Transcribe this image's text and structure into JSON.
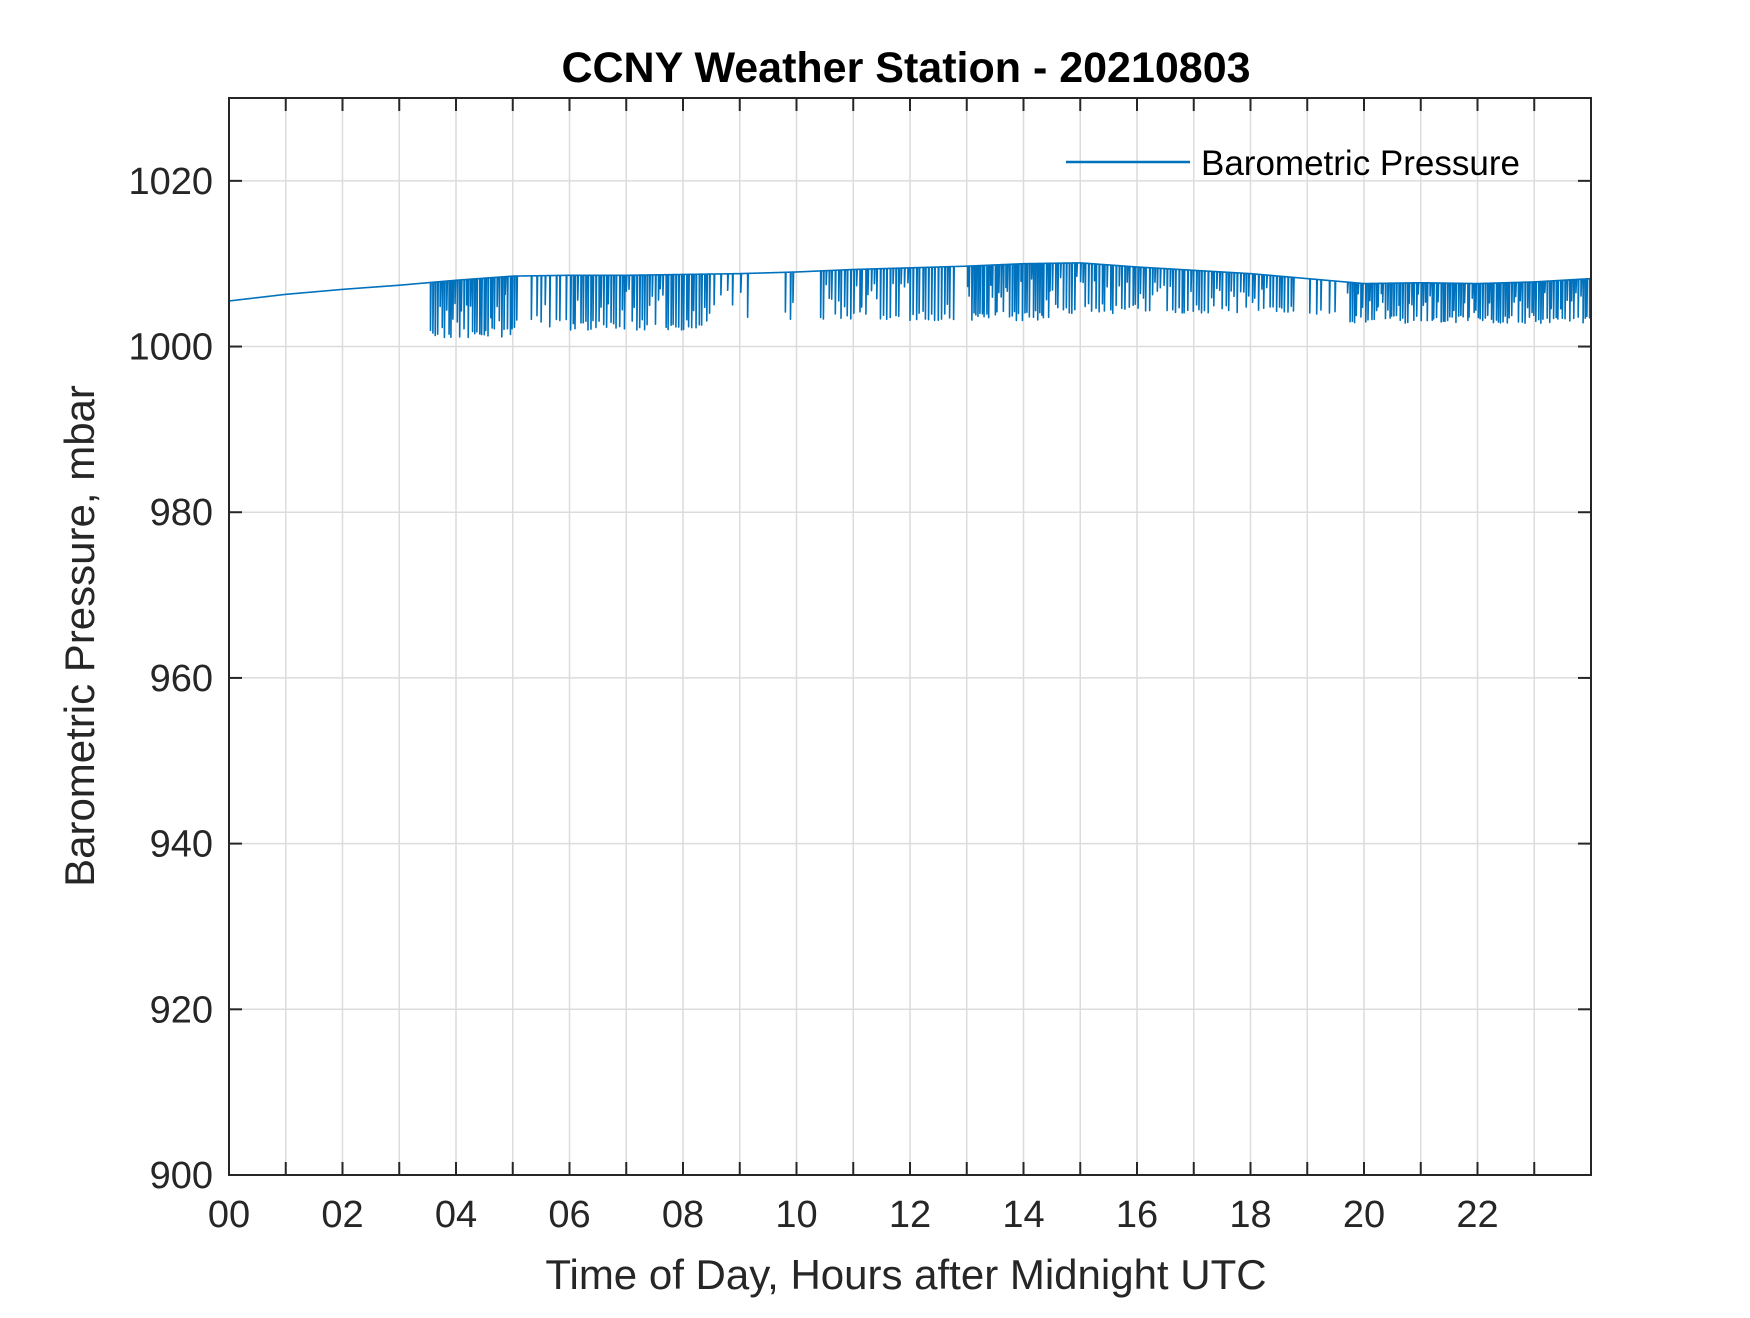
{
  "chart_data": {
    "type": "line",
    "title": "CCNY Weather Station - 20210803",
    "xlabel": "Time of Day, Hours after Midnight UTC",
    "ylabel": "Barometric Pressure, mbar",
    "xlim": [
      0,
      24
    ],
    "ylim": [
      900,
      1030
    ],
    "x_ticks": [
      0,
      2,
      4,
      6,
      8,
      10,
      12,
      14,
      16,
      18,
      20,
      22
    ],
    "x_tick_labels": [
      "00",
      "02",
      "04",
      "06",
      "08",
      "10",
      "12",
      "14",
      "16",
      "18",
      "20",
      "22"
    ],
    "x_minor_grid_step": 1,
    "y_ticks": [
      900,
      920,
      940,
      960,
      980,
      1000,
      1020
    ],
    "y_tick_labels": [
      "900",
      "920",
      "940",
      "960",
      "980",
      "1000",
      "1020"
    ],
    "grid": true,
    "legend": {
      "entries": [
        "Barometric Pressure"
      ],
      "placement": "top-right"
    },
    "series": [
      {
        "name": "Barometric Pressure",
        "color": "#0072BD",
        "baseline": {
          "x": [
            0,
            1,
            2,
            3,
            3.5,
            4,
            5,
            6,
            7,
            8,
            9,
            10,
            11,
            12,
            13,
            14,
            15,
            16,
            17,
            18,
            19,
            20,
            21,
            22,
            23,
            24
          ],
          "y": [
            1005.5,
            1006.3,
            1006.9,
            1007.4,
            1007.7,
            1008.0,
            1008.5,
            1008.6,
            1008.6,
            1008.7,
            1008.8,
            1009.0,
            1009.3,
            1009.5,
            1009.7,
            1010.0,
            1010.1,
            1009.6,
            1009.2,
            1008.8,
            1008.2,
            1007.6,
            1007.7,
            1007.6,
            1007.8,
            1008.2
          ]
        },
        "dropouts": [
          {
            "start": 3.55,
            "end": 5.1,
            "count": 40,
            "min": 1001.0
          },
          {
            "start": 5.3,
            "end": 6.0,
            "count": 8,
            "min": 1002.0
          },
          {
            "start": 6.0,
            "end": 8.5,
            "count": 55,
            "min": 1002.0
          },
          {
            "start": 8.5,
            "end": 9.2,
            "count": 6,
            "min": 1002.5
          },
          {
            "start": 9.8,
            "end": 10.0,
            "count": 3,
            "min": 1003.0
          },
          {
            "start": 10.4,
            "end": 12.8,
            "count": 45,
            "min": 1003.0
          },
          {
            "start": 13.0,
            "end": 14.5,
            "count": 40,
            "min": 1003.0
          },
          {
            "start": 14.5,
            "end": 16.2,
            "count": 35,
            "min": 1004.0
          },
          {
            "start": 16.2,
            "end": 18.8,
            "count": 50,
            "min": 1004.0
          },
          {
            "start": 19.0,
            "end": 19.6,
            "count": 5,
            "min": 1003.5
          },
          {
            "start": 19.7,
            "end": 24.0,
            "count": 110,
            "min": 1002.8
          }
        ]
      }
    ]
  }
}
